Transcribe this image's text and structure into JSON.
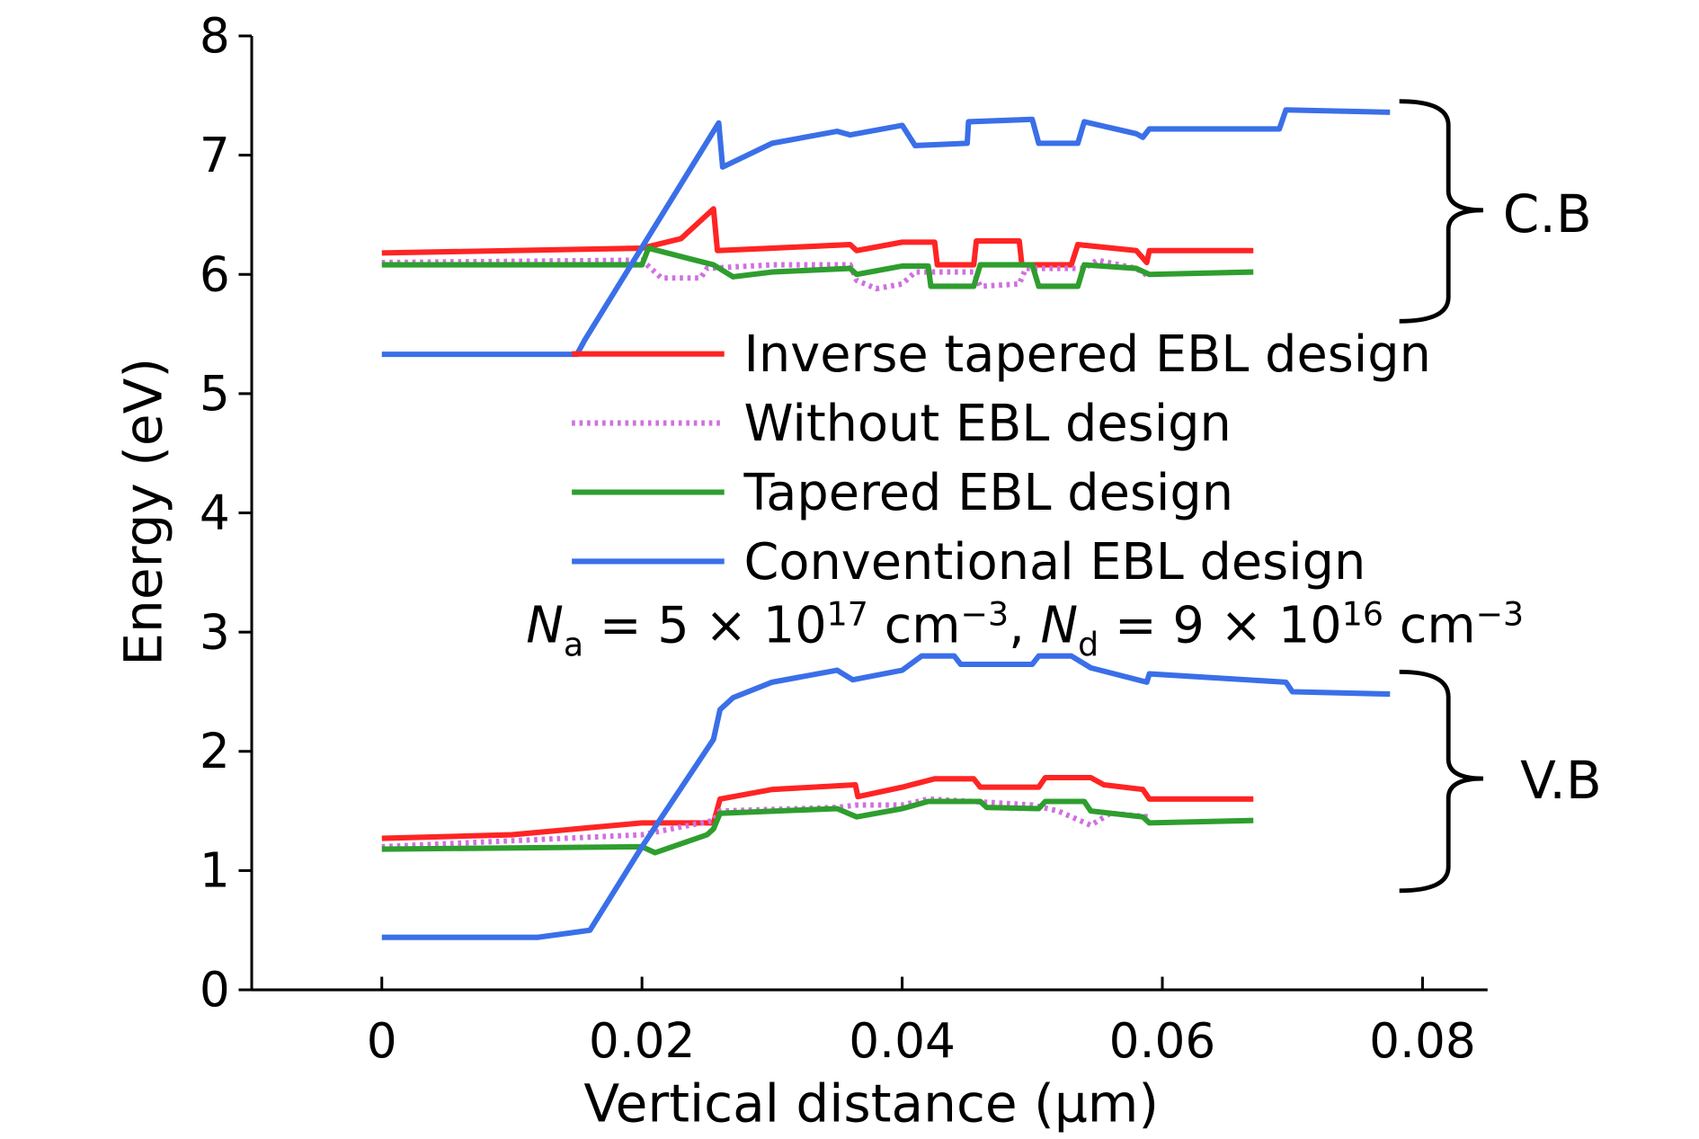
{
  "chart_data": {
    "type": "line",
    "xlabel": "Vertical distance (μm)",
    "ylabel": "Energy (eV)",
    "xlim": [
      -0.01,
      0.085
    ],
    "ylim": [
      0,
      8
    ],
    "xticks": [
      0,
      0.02,
      0.04,
      0.06,
      0.08
    ],
    "yticks": [
      0,
      1,
      2,
      3,
      4,
      5,
      6,
      7,
      8
    ],
    "series": [
      {
        "name": "Inverse tapered EBL design",
        "color": "#ff2424",
        "dash": "solid",
        "cb_x": [
          0,
          0.02,
          0.023,
          0.0255,
          0.0258,
          0.03,
          0.036,
          0.0365,
          0.04,
          0.0425,
          0.0427,
          0.0455,
          0.0457,
          0.049,
          0.0492,
          0.053,
          0.0535,
          0.058,
          0.0588,
          0.059,
          0.067
        ],
        "cb_values": [
          6.18,
          6.22,
          6.3,
          6.55,
          6.2,
          6.22,
          6.25,
          6.2,
          6.27,
          6.27,
          6.08,
          6.08,
          6.28,
          6.28,
          6.08,
          6.08,
          6.25,
          6.2,
          6.1,
          6.2,
          6.2
        ],
        "vb_x": [
          0,
          0.01,
          0.02,
          0.0255,
          0.026,
          0.03,
          0.0364,
          0.0366,
          0.04,
          0.0425,
          0.0455,
          0.046,
          0.0505,
          0.051,
          0.0545,
          0.0555,
          0.0585,
          0.059,
          0.067
        ],
        "vb_values": [
          1.27,
          1.3,
          1.4,
          1.4,
          1.6,
          1.68,
          1.72,
          1.62,
          1.7,
          1.77,
          1.77,
          1.7,
          1.7,
          1.78,
          1.78,
          1.72,
          1.68,
          1.6,
          1.6
        ]
      },
      {
        "name": "Without EBL design",
        "color": "#d070e0",
        "dash": "dotted",
        "cb_x": [
          0,
          0.02,
          0.0215,
          0.0245,
          0.025,
          0.03,
          0.036,
          0.0365,
          0.038,
          0.04,
          0.041,
          0.0455,
          0.046,
          0.049,
          0.0495,
          0.054,
          0.055,
          0.058,
          0.059
        ],
        "cb_values": [
          6.1,
          6.12,
          5.97,
          5.97,
          6.05,
          6.08,
          6.08,
          5.95,
          5.88,
          5.92,
          6.02,
          6.02,
          5.9,
          5.92,
          6.05,
          6.05,
          6.12,
          6.05,
          5.98
        ],
        "vb_x": [
          0,
          0.02,
          0.0255,
          0.026,
          0.035,
          0.0365,
          0.04,
          0.042,
          0.047,
          0.05,
          0.052,
          0.0545,
          0.056,
          0.059
        ],
        "vb_values": [
          1.2,
          1.3,
          1.42,
          1.5,
          1.53,
          1.55,
          1.55,
          1.6,
          1.57,
          1.55,
          1.5,
          1.38,
          1.48,
          1.45
        ]
      },
      {
        "name": "Tapered EBL design",
        "color": "#2e9e2e",
        "dash": "solid",
        "cb_x": [
          0,
          0.02,
          0.0205,
          0.0255,
          0.027,
          0.03,
          0.036,
          0.0365,
          0.04,
          0.042,
          0.0422,
          0.0455,
          0.046,
          0.05,
          0.0505,
          0.0535,
          0.054,
          0.058,
          0.059,
          0.067
        ],
        "cb_values": [
          6.08,
          6.08,
          6.22,
          6.08,
          5.98,
          6.02,
          6.05,
          6.0,
          6.07,
          6.07,
          5.9,
          5.9,
          6.08,
          6.08,
          5.9,
          5.9,
          6.08,
          6.05,
          6.0,
          6.02
        ],
        "vb_x": [
          0,
          0.02,
          0.021,
          0.025,
          0.0255,
          0.026,
          0.035,
          0.0365,
          0.04,
          0.042,
          0.046,
          0.0465,
          0.0505,
          0.051,
          0.054,
          0.0545,
          0.0585,
          0.059,
          0.067
        ],
        "vb_values": [
          1.18,
          1.2,
          1.15,
          1.3,
          1.35,
          1.48,
          1.52,
          1.45,
          1.52,
          1.58,
          1.58,
          1.53,
          1.52,
          1.58,
          1.58,
          1.5,
          1.45,
          1.4,
          1.42
        ]
      },
      {
        "name": "Conventional EBL design",
        "color": "#3a6fe8",
        "dash": "solid",
        "cb_x": [
          0,
          0.015,
          0.0156,
          0.0259,
          0.0262,
          0.03,
          0.035,
          0.036,
          0.04,
          0.041,
          0.045,
          0.0451,
          0.05,
          0.0505,
          0.0535,
          0.054,
          0.058,
          0.0585,
          0.059,
          0.069,
          0.0695,
          0.0775
        ],
        "cb_values": [
          5.33,
          5.33,
          5.45,
          7.27,
          6.9,
          7.1,
          7.2,
          7.17,
          7.25,
          7.08,
          7.1,
          7.28,
          7.3,
          7.1,
          7.1,
          7.28,
          7.18,
          7.15,
          7.22,
          7.22,
          7.38,
          7.36
        ],
        "vb_x": [
          0,
          0.012,
          0.016,
          0.02,
          0.0255,
          0.026,
          0.027,
          0.03,
          0.035,
          0.0362,
          0.04,
          0.0415,
          0.044,
          0.0445,
          0.05,
          0.0505,
          0.053,
          0.0545,
          0.0588,
          0.059,
          0.0695,
          0.07,
          0.0775
        ],
        "vb_values": [
          0.44,
          0.44,
          0.5,
          1.2,
          2.1,
          2.35,
          2.45,
          2.58,
          2.68,
          2.6,
          2.68,
          2.8,
          2.8,
          2.73,
          2.73,
          2.8,
          2.8,
          2.7,
          2.58,
          2.65,
          2.58,
          2.5,
          2.48
        ]
      }
    ],
    "annotations": {
      "cb_label": "C.B",
      "vb_label": "V.B",
      "formula": [
        {
          "text": "N",
          "style": "italic"
        },
        {
          "text": "a",
          "style": "sub"
        },
        {
          "text": " = 5 × 10",
          "style": "normal"
        },
        {
          "text": "17",
          "style": "sup"
        },
        {
          "text": " cm",
          "style": "normal"
        },
        {
          "text": "−3",
          "style": "sup"
        },
        {
          "text": ", ",
          "style": "normal"
        },
        {
          "text": "N",
          "style": "italic"
        },
        {
          "text": "d",
          "style": "sub"
        },
        {
          "text": " = 9 × 10",
          "style": "normal"
        },
        {
          "text": "16",
          "style": "sup"
        },
        {
          "text": " cm",
          "style": "normal"
        },
        {
          "text": "−3",
          "style": "sup"
        }
      ]
    }
  }
}
